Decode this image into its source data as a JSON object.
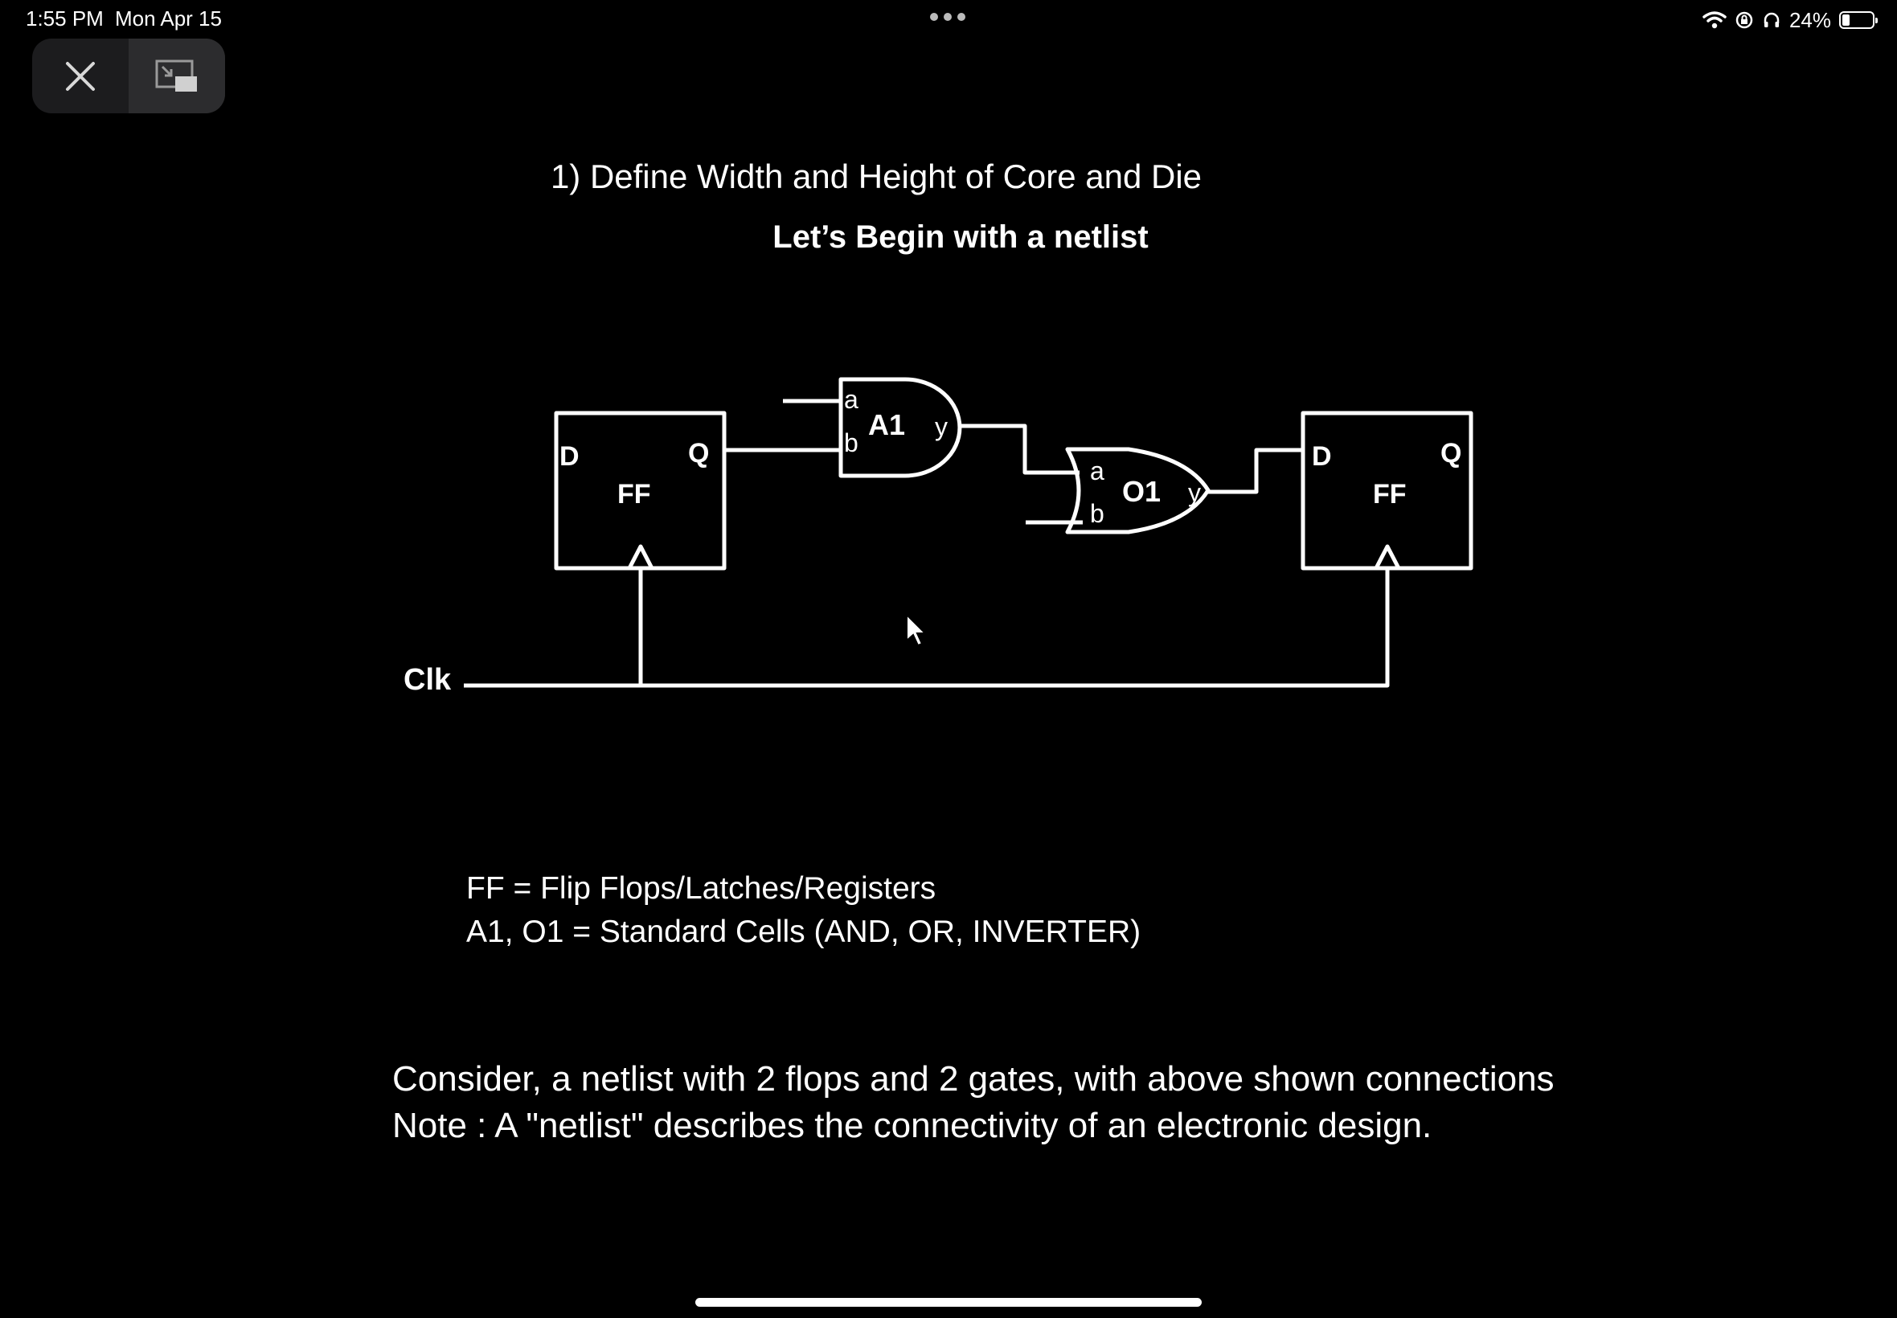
{
  "status_bar": {
    "time": "1:55 PM",
    "date": "Mon Apr 15",
    "battery_text": "24%",
    "battery_level": 0.24,
    "icons": [
      "wifi-icon",
      "orientation-lock-icon",
      "headphones-icon",
      "battery-icon"
    ]
  },
  "pip_controls": {
    "close_icon": "close-icon",
    "restore_icon": "pip-restore-icon"
  },
  "slide": {
    "title": "1) Define Width and Height of Core and Die",
    "subtitle": "Let’s Begin with a netlist",
    "diagram": {
      "ff_left": {
        "label": "FF",
        "d_pin": "D",
        "q_pin": "Q"
      },
      "ff_right": {
        "label": "FF",
        "d_pin": "D",
        "q_pin": "Q"
      },
      "gate_and": {
        "label": "A1",
        "in_a": "a",
        "in_b": "b",
        "out": "y"
      },
      "gate_or": {
        "label": "O1",
        "in_a": "a",
        "in_b": "b",
        "out": "y"
      },
      "clock_label": "Clk"
    },
    "legend": [
      "FF = Flip Flops/Latches/Registers",
      "A1, O1 = Standard Cells (AND, OR, INVERTER)"
    ],
    "notes": [
      "Consider, a netlist with 2 flops and 2 gates, with above shown connections",
      "Note : A \"netlist\" describes the connectivity of an electronic design."
    ]
  }
}
